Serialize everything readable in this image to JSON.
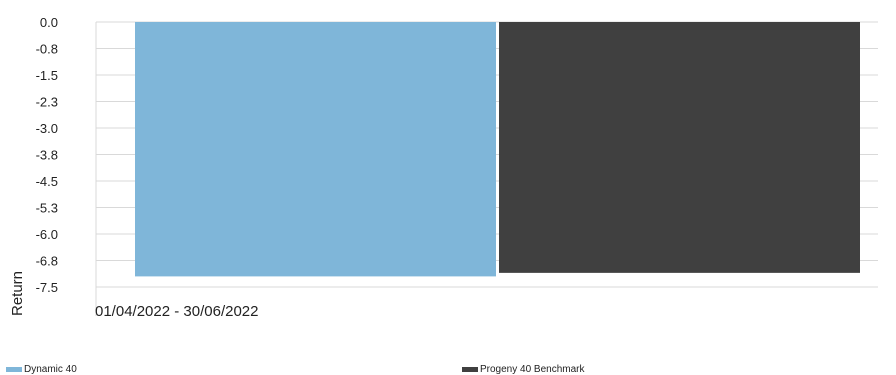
{
  "chart_data": {
    "type": "bar",
    "categories": [
      "01/04/2022 - 30/06/2022"
    ],
    "series": [
      {
        "name": "Dynamic 40",
        "values": [
          -7.2
        ],
        "color": "#7fb6d9"
      },
      {
        "name": "Progeny 40 Benchmark",
        "values": [
          -7.1
        ],
        "color": "#404040"
      }
    ],
    "ylabel": "Return",
    "ylim": [
      -7.5,
      0.0
    ],
    "yticks": [
      "0.0",
      "-0.8",
      "-1.5",
      "-2.3",
      "-3.0",
      "-3.8",
      "-4.5",
      "-5.3",
      "-6.0",
      "-6.8",
      "-7.5"
    ],
    "grid": true,
    "legend_position": "bottom"
  }
}
